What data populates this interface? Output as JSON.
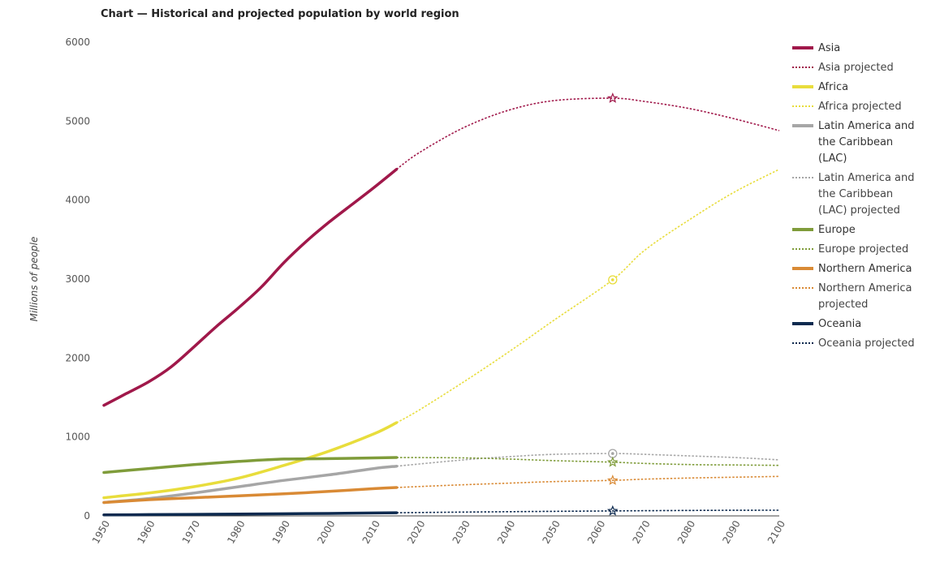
{
  "chart_data": {
    "type": "line",
    "title": "Chart — Historical and projected population by world region",
    "xlabel": "",
    "ylabel": "Millions of people",
    "xlim": [
      1950,
      2100
    ],
    "ylim": [
      0,
      6000
    ],
    "x_ticks": [
      1950,
      1960,
      1970,
      1980,
      1990,
      2000,
      2010,
      2020,
      2030,
      2040,
      2050,
      2060,
      2070,
      2080,
      2090,
      2100
    ],
    "y_ticks": [
      0,
      1000,
      2000,
      3000,
      4000,
      5000,
      6000
    ],
    "grid": false,
    "legend_position": "right",
    "series": [
      {
        "name": "Asia",
        "color": "#a0184a",
        "style": "solid",
        "x": [
          1950,
          1955,
          1960,
          1965,
          1970,
          1975,
          1980,
          1985,
          1990,
          1995,
          2000,
          2005,
          2010,
          2015
        ],
        "y": [
          1400,
          1550,
          1700,
          1890,
          2140,
          2400,
          2640,
          2900,
          3210,
          3480,
          3720,
          3940,
          4160,
          4390
        ]
      },
      {
        "name": "Asia projected",
        "color": "#a0184a",
        "style": "dotted",
        "x": [
          2015,
          2020,
          2030,
          2040,
          2050,
          2063,
          2070,
          2080,
          2090,
          2100
        ],
        "y": [
          4390,
          4600,
          4920,
          5140,
          5260,
          5290,
          5250,
          5160,
          5030,
          4880
        ]
      },
      {
        "name": "Africa",
        "color": "#e8dd3c",
        "style": "solid",
        "x": [
          1950,
          1960,
          1970,
          1980,
          1990,
          2000,
          2010,
          2015
        ],
        "y": [
          230,
          290,
          370,
          480,
          640,
          820,
          1040,
          1180
        ]
      },
      {
        "name": "Africa projected",
        "color": "#e8dd3c",
        "style": "dotted",
        "x": [
          2015,
          2020,
          2030,
          2040,
          2050,
          2063,
          2070,
          2080,
          2090,
          2100
        ],
        "y": [
          1180,
          1340,
          1700,
          2080,
          2480,
          2990,
          3360,
          3750,
          4100,
          4390
        ]
      },
      {
        "name": "Latin America and the Caribbean (LAC)",
        "color": "#a6a6a6",
        "style": "solid",
        "x": [
          1950,
          1960,
          1970,
          1980,
          1990,
          2000,
          2010,
          2015
        ],
        "y": [
          170,
          220,
          290,
          370,
          450,
          520,
          600,
          630
        ]
      },
      {
        "name": "Latin America and the Caribbean (LAC) projected",
        "color": "#a6a6a6",
        "style": "dotted",
        "x": [
          2015,
          2030,
          2040,
          2050,
          2063,
          2070,
          2080,
          2090,
          2100
        ],
        "y": [
          630,
          710,
          750,
          780,
          790,
          780,
          760,
          740,
          710
        ]
      },
      {
        "name": "Europe",
        "color": "#7f9c3a",
        "style": "solid",
        "x": [
          1950,
          1960,
          1970,
          1980,
          1990,
          2000,
          2010,
          2015
        ],
        "y": [
          550,
          600,
          650,
          690,
          720,
          725,
          735,
          740
        ]
      },
      {
        "name": "Europe projected",
        "color": "#7f9c3a",
        "style": "dotted",
        "x": [
          2015,
          2030,
          2040,
          2050,
          2063,
          2070,
          2080,
          2090,
          2100
        ],
        "y": [
          740,
          735,
          720,
          700,
          680,
          665,
          650,
          645,
          640
        ]
      },
      {
        "name": "Northern America",
        "color": "#d98a35",
        "style": "solid",
        "x": [
          1950,
          1960,
          1970,
          1980,
          1990,
          2000,
          2010,
          2015
        ],
        "y": [
          170,
          205,
          230,
          255,
          280,
          310,
          345,
          360
        ]
      },
      {
        "name": "Northern America projected",
        "color": "#d98a35",
        "style": "dotted",
        "x": [
          2015,
          2030,
          2040,
          2050,
          2063,
          2070,
          2080,
          2090,
          2100
        ],
        "y": [
          360,
          395,
          415,
          435,
          450,
          465,
          480,
          490,
          500
        ]
      },
      {
        "name": "Oceania",
        "color": "#0d2a4f",
        "style": "solid",
        "x": [
          1950,
          1960,
          1970,
          1980,
          1990,
          2000,
          2010,
          2015
        ],
        "y": [
          13,
          16,
          20,
          23,
          27,
          31,
          37,
          40
        ]
      },
      {
        "name": "Oceania projected",
        "color": "#0d2a4f",
        "style": "dotted",
        "x": [
          2015,
          2030,
          2040,
          2050,
          2063,
          2070,
          2080,
          2090,
          2100
        ],
        "y": [
          40,
          48,
          53,
          58,
          63,
          66,
          69,
          71,
          72
        ]
      }
    ],
    "annotations": [
      {
        "series": "Asia projected",
        "x": 2063,
        "y": 5290,
        "marker": "star"
      },
      {
        "series": "Africa projected",
        "x": 2063,
        "y": 2990,
        "marker": "circle"
      },
      {
        "series": "Latin America and the Caribbean (LAC) projected",
        "x": 2063,
        "y": 790,
        "marker": "circle"
      },
      {
        "series": "Europe projected",
        "x": 2063,
        "y": 680,
        "marker": "star"
      },
      {
        "series": "Northern America projected",
        "x": 2063,
        "y": 450,
        "marker": "star"
      },
      {
        "series": "Oceania projected",
        "x": 2063,
        "y": 63,
        "marker": "star"
      }
    ],
    "legend_labels": [
      [
        "Asia"
      ],
      [
        "Asia projected"
      ],
      [
        "Africa"
      ],
      [
        "Africa projected"
      ],
      [
        "Latin America and",
        "the Caribbean",
        "(LAC)"
      ],
      [
        "Latin America and",
        "the Caribbean",
        "(LAC) projected"
      ],
      [
        "Europe"
      ],
      [
        "Europe projected"
      ],
      [
        "Northern America"
      ],
      [
        "Northern America",
        "projected"
      ],
      [
        "Oceania"
      ],
      [
        "Oceania projected"
      ]
    ]
  }
}
